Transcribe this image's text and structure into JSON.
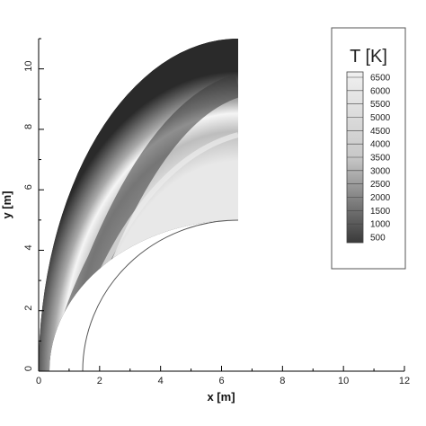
{
  "chart_data": {
    "type": "heatmap",
    "title": "",
    "xlabel": "x [m]",
    "ylabel": "y [m]",
    "xlim": [
      0,
      12
    ],
    "ylim": [
      0,
      11
    ],
    "x_ticks": [
      "0",
      "2",
      "4",
      "6",
      "8",
      "10",
      "12"
    ],
    "y_ticks": [
      "0",
      "2",
      "4",
      "6",
      "8",
      "10"
    ],
    "x_tick_values": [
      0,
      2,
      4,
      6,
      8,
      10,
      12
    ],
    "y_tick_values": [
      0,
      2,
      4,
      6,
      8,
      10
    ],
    "field": {
      "variable": "T [K]",
      "body_surface": {
        "center_x": 6.5,
        "semi_axis_x": 5.1,
        "semi_axis_y": 5.0
      },
      "shock_surface": {
        "center_x": 6.5,
        "semi_axis_x": 6.5,
        "semi_axis_y": 10.9
      },
      "outflow_x": 6.5
    },
    "colorbar": {
      "title": "T [K]",
      "levels": [
        500,
        1000,
        1500,
        2000,
        2500,
        3000,
        3500,
        4000,
        4500,
        5000,
        5500,
        6000,
        6500
      ],
      "labels": [
        "6500",
        "6000",
        "5500",
        "5000",
        "4500",
        "4000",
        "3500",
        "3000",
        "2500",
        "2000",
        "1500",
        "1000",
        "500"
      ]
    },
    "legend_position": "top-right",
    "colormap": "grayscale",
    "colors": {
      "low": "#2a2a2a",
      "high": "#f2f2f2",
      "frame": "#555555"
    }
  }
}
